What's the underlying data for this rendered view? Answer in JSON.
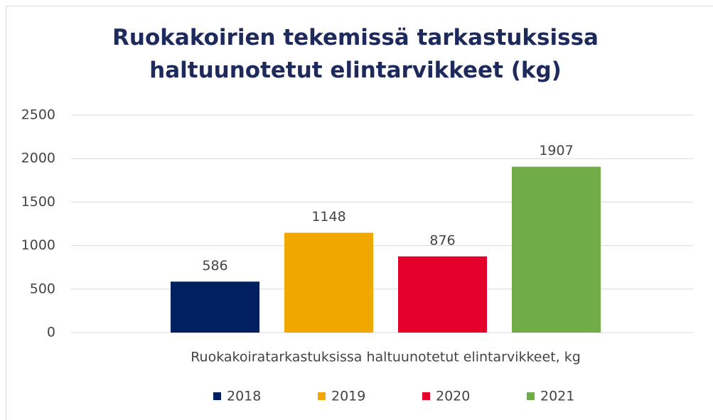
{
  "chart_data": {
    "type": "bar",
    "title": "Ruokakoirien tekemissä tarkastuksissa haltuunotetut elintarvikkeet (kg)",
    "categories": [
      "Ruokakoiratarkastuksissa haltuunotetut elintarvikkeet, kg"
    ],
    "series": [
      {
        "name": "2018",
        "color": "#002060",
        "values": [
          586
        ]
      },
      {
        "name": "2019",
        "color": "#f0a800",
        "values": [
          1148
        ]
      },
      {
        "name": "2020",
        "color": "#e4002b",
        "values": [
          876
        ]
      },
      {
        "name": "2021",
        "color": "#70ad47",
        "values": [
          1907
        ]
      }
    ],
    "ylim": [
      0,
      2500
    ],
    "yticks": [
      0,
      500,
      1000,
      1500,
      2000,
      2500
    ],
    "grid": true,
    "legend": "bottom"
  }
}
